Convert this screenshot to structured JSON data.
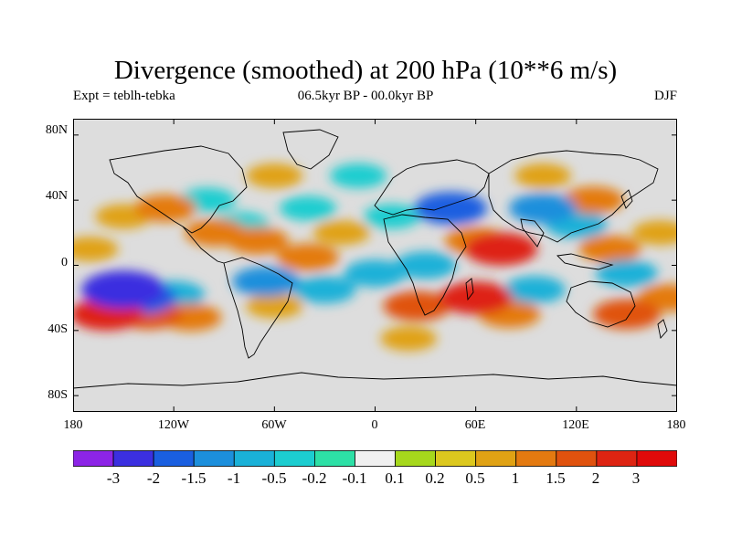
{
  "title": "Divergence (smoothed) at 200 hPa (10**6 m/s)",
  "subtitle_left": "Expt = teblh-tebka",
  "subtitle_center": "06.5kyr BP - 00.0kyr BP",
  "subtitle_right": "DJF",
  "map": {
    "land_color": "#dddddd",
    "coastline_color": "#000000",
    "lon_range": [
      -180,
      180
    ],
    "lat_range": [
      -90,
      90
    ],
    "lat_ticks": [
      {
        "label": "80N",
        "value": 80
      },
      {
        "label": "40N",
        "value": 40
      },
      {
        "label": "0",
        "value": 0
      },
      {
        "label": "40S",
        "value": -40
      },
      {
        "label": "80S",
        "value": -80
      }
    ],
    "lon_ticks": [
      {
        "label": "180",
        "value": -180
      },
      {
        "label": "120W",
        "value": -120
      },
      {
        "label": "60W",
        "value": -60
      },
      {
        "label": "0",
        "value": 0
      },
      {
        "label": "60E",
        "value": 60
      },
      {
        "label": "120E",
        "value": 120
      },
      {
        "label": "180",
        "value": 180
      }
    ]
  },
  "colorbar": {
    "labels": [
      "-3",
      "-2",
      "-1.5",
      "-1",
      "-0.5",
      "-0.2",
      "-0.1",
      "0.1",
      "0.2",
      "0.5",
      "1",
      "1.5",
      "2",
      "3"
    ],
    "colors": [
      "#8c24e6",
      "#3b2fe0",
      "#1a5fe0",
      "#1c8fdc",
      "#1ab1d8",
      "#1ccdd0",
      "#2de0a6",
      "#f0f0f0",
      "#a6d81c",
      "#dcc81e",
      "#e0a214",
      "#e47a10",
      "#e0520e",
      "#de2412",
      "#e00a0a"
    ]
  },
  "field": {
    "description_only": false,
    "blobs": [
      {
        "lon": -150,
        "lat": -15,
        "value": -3
      },
      {
        "lon": -140,
        "lat": -20,
        "value": -2
      },
      {
        "lon": -120,
        "lat": -18,
        "value": -1
      },
      {
        "lon": -160,
        "lat": -30,
        "value": 2
      },
      {
        "lon": -135,
        "lat": -30,
        "value": 1.5
      },
      {
        "lon": -110,
        "lat": -32,
        "value": 1
      },
      {
        "lon": -125,
        "lat": 35,
        "value": 1
      },
      {
        "lon": -150,
        "lat": 30,
        "value": 0.5
      },
      {
        "lon": -100,
        "lat": 40,
        "value": -0.5
      },
      {
        "lon": -95,
        "lat": 20,
        "value": 1
      },
      {
        "lon": -80,
        "lat": 25,
        "value": -0.5
      },
      {
        "lon": -70,
        "lat": 15,
        "value": 1
      },
      {
        "lon": -65,
        "lat": -10,
        "value": -1.5
      },
      {
        "lon": -60,
        "lat": -25,
        "value": 0.5
      },
      {
        "lon": -40,
        "lat": 5,
        "value": 1
      },
      {
        "lon": -30,
        "lat": -15,
        "value": -1
      },
      {
        "lon": -40,
        "lat": 35,
        "value": -0.5
      },
      {
        "lon": -20,
        "lat": 20,
        "value": 0.5
      },
      {
        "lon": 10,
        "lat": 30,
        "value": -0.5
      },
      {
        "lon": 0,
        "lat": -5,
        "value": -1
      },
      {
        "lon": 30,
        "lat": 0,
        "value": -1
      },
      {
        "lon": 25,
        "lat": -25,
        "value": 1.5
      },
      {
        "lon": 45,
        "lat": 35,
        "value": -2
      },
      {
        "lon": 60,
        "lat": 15,
        "value": 1
      },
      {
        "lon": 75,
        "lat": 10,
        "value": 2
      },
      {
        "lon": 60,
        "lat": -20,
        "value": 2
      },
      {
        "lon": 80,
        "lat": -30,
        "value": 1
      },
      {
        "lon": 95,
        "lat": -15,
        "value": -1
      },
      {
        "lon": 100,
        "lat": 35,
        "value": -1.5
      },
      {
        "lon": 120,
        "lat": 25,
        "value": -1
      },
      {
        "lon": 130,
        "lat": 40,
        "value": 1
      },
      {
        "lon": 140,
        "lat": 10,
        "value": 1
      },
      {
        "lon": 150,
        "lat": -5,
        "value": -1
      },
      {
        "lon": 170,
        "lat": 20,
        "value": 0.5
      },
      {
        "lon": 150,
        "lat": -30,
        "value": 1.5
      },
      {
        "lon": 175,
        "lat": -20,
        "value": 1
      },
      {
        "lon": -170,
        "lat": 10,
        "value": 0.5
      },
      {
        "lon": -10,
        "lat": 55,
        "value": -0.5
      },
      {
        "lon": -60,
        "lat": 55,
        "value": 0.5
      },
      {
        "lon": 100,
        "lat": 55,
        "value": 0.5
      },
      {
        "lon": 20,
        "lat": -45,
        "value": 0.5
      }
    ]
  }
}
